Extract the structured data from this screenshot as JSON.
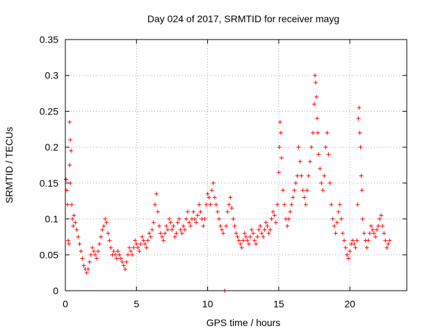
{
  "chart_data": {
    "type": "scatter",
    "title": "Day 024 of 2017, SRMTID for receiver mayg",
    "xlabel": "GPS time / hours",
    "ylabel": "SRMTID / TECUs",
    "xlim": [
      0,
      24
    ],
    "ylim": [
      0,
      0.35
    ],
    "x_ticks": [
      0,
      5,
      10,
      15,
      20
    ],
    "x_tick_labels": [
      "0",
      "5",
      "10",
      "15",
      "20"
    ],
    "y_ticks": [
      0,
      0.05,
      0.1,
      0.15,
      0.2,
      0.25,
      0.3,
      0.35
    ],
    "y_tick_labels": [
      "0",
      "0.05",
      "0.1",
      "0.15",
      "0.2",
      "0.25",
      "0.3",
      "0.35"
    ],
    "grid": true,
    "marker": "+",
    "color": "#ff0000",
    "series": [
      {
        "name": "SRMTID",
        "points": [
          [
            0.05,
            0.155
          ],
          [
            0.1,
            0.14
          ],
          [
            0.15,
            0.12
          ],
          [
            0.2,
            0.07
          ],
          [
            0.25,
            0.065
          ],
          [
            0.3,
            0.235
          ],
          [
            0.35,
            0.21
          ],
          [
            0.4,
            0.195
          ],
          [
            0.3,
            0.175
          ],
          [
            0.35,
            0.15
          ],
          [
            0.45,
            0.12
          ],
          [
            0.5,
            0.1
          ],
          [
            0.55,
            0.09
          ],
          [
            0.6,
            0.105
          ],
          [
            0.7,
            0.095
          ],
          [
            0.8,
            0.085
          ],
          [
            0.9,
            0.075
          ],
          [
            1.0,
            0.065
          ],
          [
            1.1,
            0.055
          ],
          [
            1.2,
            0.045
          ],
          [
            1.3,
            0.035
          ],
          [
            1.4,
            0.03
          ],
          [
            1.5,
            0.025
          ],
          [
            1.6,
            0.03
          ],
          [
            1.7,
            0.04
          ],
          [
            1.8,
            0.05
          ],
          [
            1.9,
            0.06
          ],
          [
            2.0,
            0.055
          ],
          [
            2.1,
            0.05
          ],
          [
            2.2,
            0.045
          ],
          [
            2.3,
            0.055
          ],
          [
            2.4,
            0.065
          ],
          [
            2.5,
            0.075
          ],
          [
            2.6,
            0.085
          ],
          [
            2.7,
            0.09
          ],
          [
            2.8,
            0.1
          ],
          [
            2.9,
            0.095
          ],
          [
            3.0,
            0.08
          ],
          [
            3.1,
            0.07
          ],
          [
            3.2,
            0.06
          ],
          [
            3.3,
            0.05
          ],
          [
            3.4,
            0.055
          ],
          [
            3.5,
            0.05
          ],
          [
            3.6,
            0.045
          ],
          [
            3.7,
            0.055
          ],
          [
            3.8,
            0.05
          ],
          [
            3.9,
            0.045
          ],
          [
            4.0,
            0.04
          ],
          [
            4.1,
            0.035
          ],
          [
            4.2,
            0.03
          ],
          [
            4.3,
            0.04
          ],
          [
            4.4,
            0.05
          ],
          [
            4.5,
            0.06
          ],
          [
            4.6,
            0.055
          ],
          [
            4.7,
            0.05
          ],
          [
            4.8,
            0.06
          ],
          [
            4.9,
            0.07
          ],
          [
            5.0,
            0.065
          ],
          [
            5.1,
            0.06
          ],
          [
            5.2,
            0.055
          ],
          [
            5.3,
            0.065
          ],
          [
            5.4,
            0.075
          ],
          [
            5.5,
            0.07
          ],
          [
            5.6,
            0.065
          ],
          [
            5.7,
            0.06
          ],
          [
            5.8,
            0.07
          ],
          [
            5.9,
            0.08
          ],
          [
            6.0,
            0.075
          ],
          [
            6.1,
            0.085
          ],
          [
            6.2,
            0.095
          ],
          [
            6.3,
            0.12
          ],
          [
            6.4,
            0.135
          ],
          [
            6.5,
            0.11
          ],
          [
            6.6,
            0.09
          ],
          [
            6.7,
            0.08
          ],
          [
            6.8,
            0.075
          ],
          [
            6.9,
            0.07
          ],
          [
            7.0,
            0.08
          ],
          [
            7.1,
            0.09
          ],
          [
            7.2,
            0.085
          ],
          [
            7.3,
            0.1
          ],
          [
            7.4,
            0.095
          ],
          [
            7.5,
            0.085
          ],
          [
            7.6,
            0.09
          ],
          [
            7.7,
            0.075
          ],
          [
            7.8,
            0.08
          ],
          [
            7.9,
            0.095
          ],
          [
            8.0,
            0.1
          ],
          [
            8.1,
            0.085
          ],
          [
            8.2,
            0.08
          ],
          [
            8.3,
            0.09
          ],
          [
            8.4,
            0.085
          ],
          [
            8.5,
            0.1
          ],
          [
            8.6,
            0.11
          ],
          [
            8.7,
            0.095
          ],
          [
            8.8,
            0.09
          ],
          [
            8.9,
            0.1
          ],
          [
            9.0,
            0.11
          ],
          [
            9.1,
            0.1
          ],
          [
            9.2,
            0.095
          ],
          [
            9.3,
            0.105
          ],
          [
            9.4,
            0.12
          ],
          [
            9.5,
            0.11
          ],
          [
            9.6,
            0.1
          ],
          [
            9.7,
            0.09
          ],
          [
            9.8,
            0.1
          ],
          [
            9.9,
            0.12
          ],
          [
            10.0,
            0.135
          ],
          [
            10.1,
            0.13
          ],
          [
            10.2,
            0.12
          ],
          [
            10.3,
            0.14
          ],
          [
            10.4,
            0.15
          ],
          [
            10.5,
            0.13
          ],
          [
            10.6,
            0.12
          ],
          [
            10.7,
            0.11
          ],
          [
            10.8,
            0.1
          ],
          [
            10.9,
            0.09
          ],
          [
            11.0,
            0.085
          ],
          [
            11.1,
            0.08
          ],
          [
            11.2,
            0.0
          ],
          [
            11.3,
            0.09
          ],
          [
            11.4,
            0.11
          ],
          [
            11.5,
            0.12
          ],
          [
            11.6,
            0.13
          ],
          [
            11.7,
            0.115
          ],
          [
            11.8,
            0.1
          ],
          [
            11.9,
            0.09
          ],
          [
            12.0,
            0.08
          ],
          [
            12.1,
            0.075
          ],
          [
            12.2,
            0.07
          ],
          [
            12.3,
            0.065
          ],
          [
            12.4,
            0.06
          ],
          [
            12.5,
            0.07
          ],
          [
            12.6,
            0.08
          ],
          [
            12.7,
            0.075
          ],
          [
            12.8,
            0.07
          ],
          [
            12.9,
            0.065
          ],
          [
            13.0,
            0.075
          ],
          [
            13.1,
            0.085
          ],
          [
            13.2,
            0.08
          ],
          [
            13.3,
            0.07
          ],
          [
            13.4,
            0.065
          ],
          [
            13.5,
            0.075
          ],
          [
            13.6,
            0.085
          ],
          [
            13.7,
            0.09
          ],
          [
            13.8,
            0.08
          ],
          [
            13.9,
            0.075
          ],
          [
            14.0,
            0.085
          ],
          [
            14.1,
            0.095
          ],
          [
            14.2,
            0.09
          ],
          [
            14.3,
            0.08
          ],
          [
            14.4,
            0.085
          ],
          [
            14.5,
            0.1
          ],
          [
            14.6,
            0.11
          ],
          [
            14.7,
            0.105
          ],
          [
            14.8,
            0.095
          ],
          [
            14.9,
            0.12
          ],
          [
            15.0,
            0.165
          ],
          [
            15.05,
            0.2
          ],
          [
            15.1,
            0.235
          ],
          [
            15.15,
            0.22
          ],
          [
            15.2,
            0.185
          ],
          [
            15.3,
            0.14
          ],
          [
            15.4,
            0.12
          ],
          [
            15.5,
            0.1
          ],
          [
            15.6,
            0.09
          ],
          [
            15.7,
            0.1
          ],
          [
            15.8,
            0.11
          ],
          [
            15.9,
            0.12
          ],
          [
            16.0,
            0.13
          ],
          [
            16.1,
            0.14
          ],
          [
            16.2,
            0.15
          ],
          [
            16.3,
            0.16
          ],
          [
            16.4,
            0.2
          ],
          [
            16.5,
            0.18
          ],
          [
            16.6,
            0.16
          ],
          [
            16.7,
            0.14
          ],
          [
            16.8,
            0.13
          ],
          [
            16.9,
            0.12
          ],
          [
            17.0,
            0.14
          ],
          [
            17.1,
            0.16
          ],
          [
            17.2,
            0.18
          ],
          [
            17.3,
            0.2
          ],
          [
            17.4,
            0.22
          ],
          [
            17.5,
            0.26
          ],
          [
            17.55,
            0.3
          ],
          [
            17.6,
            0.29
          ],
          [
            17.65,
            0.27
          ],
          [
            17.7,
            0.24
          ],
          [
            17.75,
            0.22
          ],
          [
            17.8,
            0.19
          ],
          [
            17.9,
            0.17
          ],
          [
            18.0,
            0.15
          ],
          [
            18.1,
            0.14
          ],
          [
            18.2,
            0.16
          ],
          [
            18.3,
            0.2
          ],
          [
            18.4,
            0.22
          ],
          [
            18.5,
            0.19
          ],
          [
            18.6,
            0.15
          ],
          [
            18.7,
            0.12
          ],
          [
            18.8,
            0.1
          ],
          [
            18.9,
            0.09
          ],
          [
            19.0,
            0.08
          ],
          [
            19.1,
            0.095
          ],
          [
            19.2,
            0.11
          ],
          [
            19.3,
            0.12
          ],
          [
            19.4,
            0.1
          ],
          [
            19.5,
            0.08
          ],
          [
            19.6,
            0.07
          ],
          [
            19.7,
            0.06
          ],
          [
            19.8,
            0.05
          ],
          [
            19.9,
            0.045
          ],
          [
            20.0,
            0.055
          ],
          [
            20.1,
            0.065
          ],
          [
            20.2,
            0.07
          ],
          [
            20.3,
            0.065
          ],
          [
            20.4,
            0.06
          ],
          [
            20.5,
            0.07
          ],
          [
            20.55,
            0.12
          ],
          [
            20.6,
            0.24
          ],
          [
            20.65,
            0.255
          ],
          [
            20.7,
            0.22
          ],
          [
            20.75,
            0.2
          ],
          [
            20.8,
            0.16
          ],
          [
            20.85,
            0.14
          ],
          [
            20.9,
            0.1
          ],
          [
            21.0,
            0.08
          ],
          [
            21.1,
            0.07
          ],
          [
            21.2,
            0.06
          ],
          [
            21.3,
            0.07
          ],
          [
            21.4,
            0.08
          ],
          [
            21.5,
            0.09
          ],
          [
            21.6,
            0.085
          ],
          [
            21.7,
            0.08
          ],
          [
            21.8,
            0.075
          ],
          [
            21.9,
            0.085
          ],
          [
            22.0,
            0.09
          ],
          [
            22.1,
            0.1
          ],
          [
            22.2,
            0.105
          ],
          [
            22.3,
            0.09
          ],
          [
            22.4,
            0.08
          ],
          [
            22.5,
            0.07
          ],
          [
            22.6,
            0.06
          ],
          [
            22.7,
            0.065
          ],
          [
            22.8,
            0.07
          ]
        ]
      }
    ]
  }
}
